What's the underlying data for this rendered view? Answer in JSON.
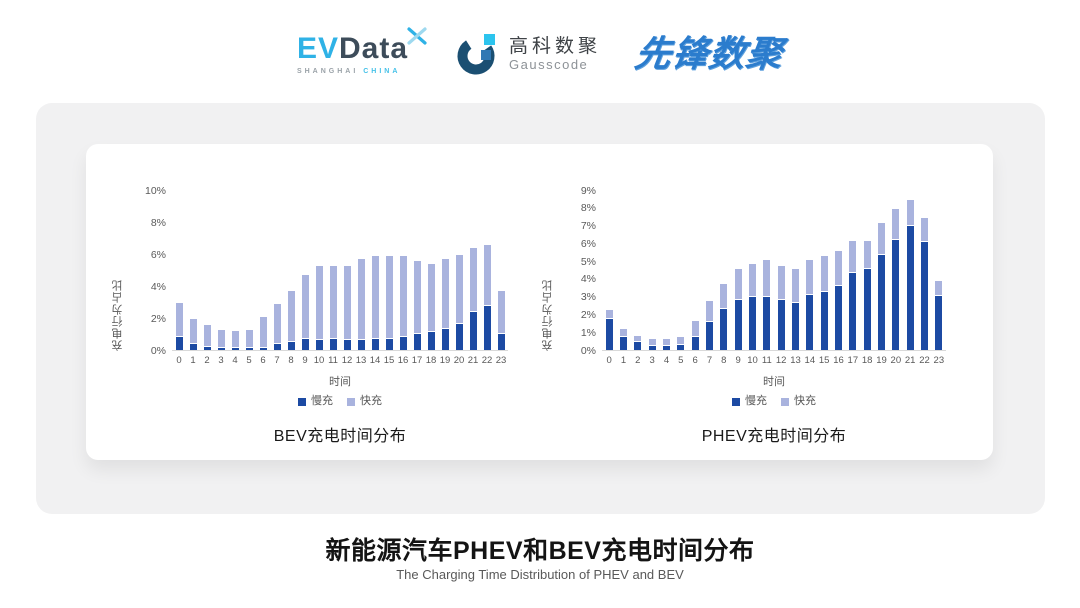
{
  "header": {
    "logo_evdata": {
      "part1": "EV",
      "part2": "Data",
      "tagline_left": "SHANGHAI",
      "tagline_right": "CHINA"
    },
    "logo_gausscode": {
      "name_cn": "高科数聚",
      "name_en": "Gausscode"
    },
    "logo_pioneer": {
      "text": "先锋数聚"
    }
  },
  "colors": {
    "slow_charge": "#1c4aa3",
    "fast_charge": "#a9b3de",
    "panel_bg": "#f1f1f2",
    "axis_text": "#595959"
  },
  "chart_data": [
    {
      "type": "bar",
      "stacked": true,
      "title": "BEV充电时间分布",
      "xlabel": "时间",
      "ylabel": "充电行为占比",
      "ylim": [
        0,
        10
      ],
      "ytick_step": 2,
      "ytick_suffix": "%",
      "grid": false,
      "legend_position": "bottom",
      "categories": [
        "0",
        "1",
        "2",
        "3",
        "4",
        "5",
        "6",
        "7",
        "8",
        "9",
        "10",
        "11",
        "12",
        "13",
        "14",
        "15",
        "16",
        "17",
        "18",
        "19",
        "20",
        "21",
        "22",
        "23"
      ],
      "series": [
        {
          "key": "slow",
          "name": "慢充",
          "color": "#1c4aa3",
          "values": [
            0.8,
            0.35,
            0.2,
            0.1,
            0.1,
            0.1,
            0.15,
            0.35,
            0.5,
            0.7,
            0.65,
            0.7,
            0.6,
            0.65,
            0.7,
            0.7,
            0.8,
            1.0,
            1.1,
            1.3,
            1.6,
            2.4,
            2.75,
            1.0
          ]
        },
        {
          "key": "fast",
          "name": "快充",
          "color": "#a9b3de",
          "values": [
            2.1,
            1.55,
            1.3,
            1.1,
            1.0,
            1.1,
            1.85,
            2.45,
            3.1,
            3.9,
            4.55,
            4.5,
            4.6,
            4.95,
            5.1,
            5.1,
            5.0,
            4.5,
            4.2,
            4.3,
            4.3,
            3.9,
            3.75,
            2.6
          ]
        }
      ]
    },
    {
      "type": "bar",
      "stacked": true,
      "title": "PHEV充电时间分布",
      "xlabel": "时间",
      "ylabel": "充电行为占比",
      "ylim": [
        0,
        9
      ],
      "ytick_step": 1,
      "ytick_suffix": "%",
      "grid": false,
      "legend_position": "bottom",
      "categories": [
        "0",
        "1",
        "2",
        "3",
        "4",
        "5",
        "6",
        "7",
        "8",
        "9",
        "10",
        "11",
        "12",
        "13",
        "14",
        "15",
        "16",
        "17",
        "18",
        "19",
        "20",
        "21",
        "22",
        "23"
      ],
      "series": [
        {
          "key": "slow",
          "name": "慢充",
          "color": "#1c4aa3",
          "values": [
            1.75,
            0.75,
            0.45,
            0.25,
            0.25,
            0.3,
            0.75,
            1.6,
            2.3,
            2.8,
            3.0,
            3.0,
            2.8,
            2.65,
            3.1,
            3.25,
            3.6,
            4.35,
            4.55,
            5.35,
            6.2,
            7.0,
            6.1,
            3.05
          ]
        },
        {
          "key": "fast",
          "name": "快充",
          "color": "#a9b3de",
          "values": [
            0.45,
            0.4,
            0.3,
            0.3,
            0.3,
            0.4,
            0.85,
            1.1,
            1.35,
            1.7,
            1.8,
            2.0,
            1.85,
            1.85,
            1.9,
            2.0,
            1.9,
            1.75,
            1.55,
            1.75,
            1.7,
            1.4,
            1.25,
            0.8
          ]
        }
      ]
    }
  ],
  "footer": {
    "title": "新能源汽车PHEV和BEV充电时间分布",
    "subtitle": "The Charging Time Distribution of PHEV and BEV"
  }
}
